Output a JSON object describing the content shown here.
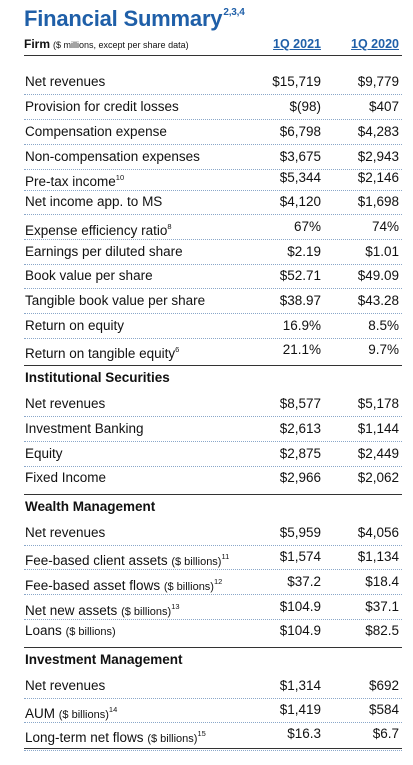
{
  "title": {
    "text": "Financial Summary",
    "sup": "2,3,4"
  },
  "header": {
    "firm_label": "Firm",
    "firm_note": "($ millions, except per share data)",
    "col1": "1Q 2021",
    "col2": "1Q 2020"
  },
  "firm_rows": [
    {
      "label": "Net revenues",
      "sup": "",
      "v1": "$15,719",
      "v2": "$9,779"
    },
    {
      "label": "Provision for credit losses",
      "sup": "",
      "v1": "$(98)",
      "v2": "$407"
    },
    {
      "label": "Compensation expense",
      "sup": "",
      "v1": "$6,798",
      "v2": "$4,283"
    },
    {
      "label": "Non-compensation expenses",
      "sup": "",
      "v1": "$3,675",
      "v2": "$2,943"
    },
    {
      "label": "Pre-tax income",
      "sup": "10",
      "v1": "$5,344",
      "v2": "$2,146"
    },
    {
      "label": "Net income app. to MS",
      "sup": "",
      "v1": "$4,120",
      "v2": "$1,698"
    },
    {
      "label": "Expense efficiency ratio",
      "sup": "8",
      "v1": "67%",
      "v2": "74%"
    },
    {
      "label": "Earnings per diluted share",
      "sup": "",
      "v1": "$2.19",
      "v2": "$1.01"
    },
    {
      "label": "Book value per share",
      "sup": "",
      "v1": "$52.71",
      "v2": "$49.09"
    },
    {
      "label": "Tangible book value per share",
      "sup": "",
      "v1": "$38.97",
      "v2": "$43.28"
    },
    {
      "label": "Return on equity",
      "sup": "",
      "v1": "16.9%",
      "v2": "8.5%"
    },
    {
      "label": "Return on tangible equity",
      "sup": "6",
      "v1": "21.1%",
      "v2": "9.7%"
    }
  ],
  "institutional": {
    "heading": "Institutional Securities",
    "rows": [
      {
        "label": "Net revenues",
        "v1": "$8,577",
        "v2": "$5,178"
      },
      {
        "label": "Investment Banking",
        "v1": "$2,613",
        "v2": "$1,144"
      },
      {
        "label": "Equity",
        "v1": "$2,875",
        "v2": "$2,449"
      },
      {
        "label": "Fixed Income",
        "v1": "$2,966",
        "v2": "$2,062"
      }
    ]
  },
  "wealth": {
    "heading": "Wealth Management",
    "rows": [
      {
        "label": "Net revenues",
        "small": "",
        "sup": "",
        "v1": "$5,959",
        "v2": "$4,056"
      },
      {
        "label": "Fee-based client assets",
        "small": "($ billions)",
        "sup": "11",
        "v1": "$1,574",
        "v2": "$1,134"
      },
      {
        "label": "Fee-based asset flows",
        "small": "($ billions)",
        "sup": "12",
        "v1": "$37.2",
        "v2": "$18.4"
      },
      {
        "label": "Net new assets",
        "small": "($ billions)",
        "sup": "13",
        "v1": "$104.9",
        "v2": "$37.1"
      },
      {
        "label": "Loans",
        "small": "($ billions)",
        "sup": "",
        "v1": "$104.9",
        "v2": "$82.5"
      }
    ]
  },
  "investment": {
    "heading": "Investment Management",
    "rows": [
      {
        "label": "Net revenues",
        "small": "",
        "sup": "",
        "v1": "$1,314",
        "v2": "$692"
      },
      {
        "label": "AUM",
        "small": "($ billions)",
        "sup": "14",
        "v1": "$1,419",
        "v2": "$584"
      },
      {
        "label": "Long-term net flows",
        "small": "($ billions)",
        "sup": "15",
        "v1": "$16.3",
        "v2": "$6.7"
      }
    ]
  }
}
